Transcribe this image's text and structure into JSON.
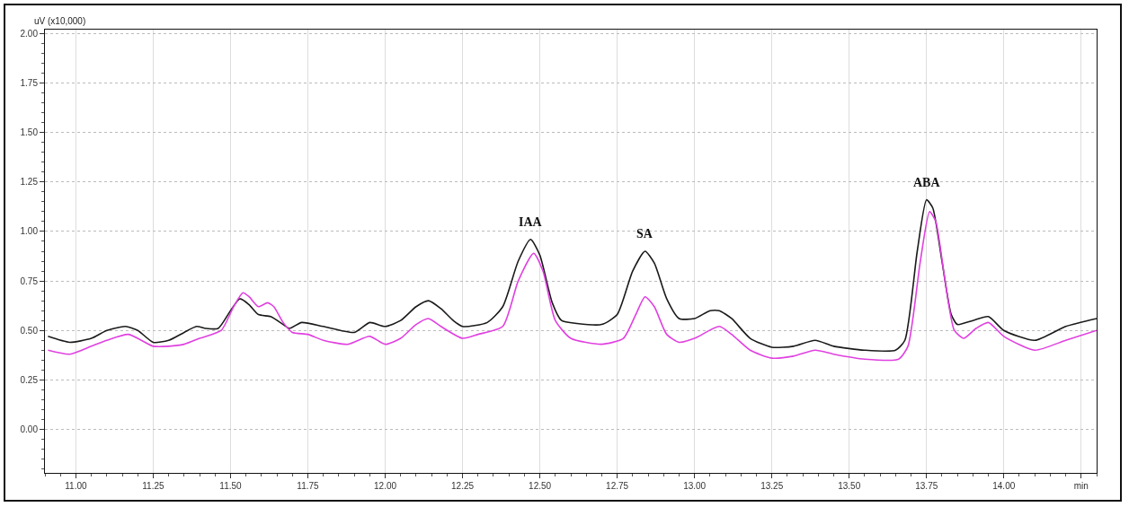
{
  "chart_data": {
    "type": "line",
    "ylabel": "uV (x10,000)",
    "xlim": [
      10.9,
      14.3
    ],
    "ylim": [
      -0.22,
      2.02
    ],
    "xticks": [
      {
        "value": 11,
        "label": "11.00"
      },
      {
        "value": 11.25,
        "label": "11.25"
      },
      {
        "value": 11.5,
        "label": "11.50"
      },
      {
        "value": 11.75,
        "label": "11.75"
      },
      {
        "value": 12,
        "label": "12.00"
      },
      {
        "value": 12.25,
        "label": "12.25"
      },
      {
        "value": 12.5,
        "label": "12.50"
      },
      {
        "value": 12.75,
        "label": "12.75"
      },
      {
        "value": 13,
        "label": "13.00"
      },
      {
        "value": 13.25,
        "label": "13.25"
      },
      {
        "value": 13.5,
        "label": "13.50"
      },
      {
        "value": 13.75,
        "label": "13.75"
      },
      {
        "value": 14,
        "label": "14.00"
      },
      {
        "value": 14.25,
        "label": "min"
      }
    ],
    "yticks": [
      {
        "value": 0,
        "label": "0.00"
      },
      {
        "value": 0.25,
        "label": "0.25"
      },
      {
        "value": 0.5,
        "label": "0.50"
      },
      {
        "value": 0.75,
        "label": "0.75"
      },
      {
        "value": 1,
        "label": "1.00"
      },
      {
        "value": 1.25,
        "label": "1.25"
      },
      {
        "value": 1.5,
        "label": "1.50"
      },
      {
        "value": 1.75,
        "label": "1.75"
      },
      {
        "value": 2,
        "label": "2.00"
      }
    ],
    "grid": true,
    "marker": "none",
    "line_style": "solid",
    "annotations": [
      {
        "text": "IAA",
        "x": 12.47,
        "y": 0.96
      },
      {
        "text": "SA",
        "x": 12.84,
        "y": 0.9
      },
      {
        "text": "ABA",
        "x": 13.75,
        "y": 1.16
      }
    ],
    "series": [
      {
        "color": "#1a1a1a",
        "x": [
          10.91,
          10.98,
          11.05,
          11.1,
          11.16,
          11.2,
          11.25,
          11.3,
          11.35,
          11.39,
          11.42,
          11.46,
          11.5,
          11.53,
          11.56,
          11.59,
          11.63,
          11.67,
          11.69,
          11.73,
          11.8,
          11.9,
          11.95,
          12,
          12.05,
          12.1,
          12.14,
          12.18,
          12.22,
          12.25,
          12.33,
          12.38,
          12.43,
          12.47,
          12.5,
          12.54,
          12.57,
          12.62,
          12.7,
          12.75,
          12.8,
          12.84,
          12.87,
          12.91,
          12.95,
          13,
          13.05,
          13.08,
          13.12,
          13.18,
          13.25,
          13.32,
          13.39,
          13.45,
          13.55,
          13.65,
          13.68,
          13.72,
          13.75,
          13.77,
          13.8,
          13.83,
          13.85,
          13.9,
          13.95,
          14,
          14.1,
          14.2,
          14.3
        ],
        "values": [
          0.47,
          0.44,
          0.46,
          0.5,
          0.52,
          0.5,
          0.44,
          0.45,
          0.49,
          0.52,
          0.51,
          0.51,
          0.6,
          0.66,
          0.63,
          0.58,
          0.57,
          0.53,
          0.51,
          0.54,
          0.52,
          0.49,
          0.54,
          0.52,
          0.55,
          0.62,
          0.65,
          0.61,
          0.55,
          0.52,
          0.54,
          0.62,
          0.85,
          0.96,
          0.88,
          0.64,
          0.55,
          0.535,
          0.53,
          0.58,
          0.8,
          0.9,
          0.84,
          0.66,
          0.56,
          0.56,
          0.6,
          0.6,
          0.56,
          0.46,
          0.415,
          0.42,
          0.45,
          0.42,
          0.4,
          0.4,
          0.45,
          0.9,
          1.16,
          1.12,
          0.85,
          0.58,
          0.53,
          0.55,
          0.57,
          0.5,
          0.45,
          0.52,
          0.56
        ]
      },
      {
        "color": "#e040e0",
        "x": [
          10.91,
          10.98,
          11.05,
          11.1,
          11.17,
          11.25,
          11.3,
          11.35,
          11.4,
          11.47,
          11.51,
          11.54,
          11.56,
          11.59,
          11.62,
          11.64,
          11.67,
          11.7,
          11.75,
          11.8,
          11.88,
          11.95,
          12,
          12.05,
          12.1,
          12.14,
          12.18,
          12.25,
          12.3,
          12.38,
          12.43,
          12.48,
          12.51,
          12.55,
          12.6,
          12.7,
          12.77,
          12.81,
          12.84,
          12.87,
          12.91,
          12.95,
          13,
          13.08,
          13.12,
          13.18,
          13.25,
          13.32,
          13.39,
          13.45,
          13.55,
          13.66,
          13.69,
          13.73,
          13.76,
          13.78,
          13.81,
          13.84,
          13.87,
          13.91,
          13.95,
          14,
          14.1,
          14.2,
          14.3
        ],
        "values": [
          0.4,
          0.38,
          0.42,
          0.45,
          0.48,
          0.42,
          0.42,
          0.43,
          0.46,
          0.5,
          0.62,
          0.69,
          0.67,
          0.62,
          0.64,
          0.62,
          0.54,
          0.49,
          0.48,
          0.45,
          0.43,
          0.47,
          0.43,
          0.46,
          0.53,
          0.56,
          0.52,
          0.46,
          0.48,
          0.52,
          0.75,
          0.89,
          0.8,
          0.55,
          0.46,
          0.43,
          0.46,
          0.58,
          0.67,
          0.62,
          0.48,
          0.44,
          0.46,
          0.52,
          0.48,
          0.4,
          0.36,
          0.37,
          0.4,
          0.38,
          0.355,
          0.355,
          0.42,
          0.85,
          1.1,
          1.05,
          0.75,
          0.5,
          0.46,
          0.51,
          0.54,
          0.47,
          0.4,
          0.45,
          0.5
        ]
      }
    ]
  }
}
